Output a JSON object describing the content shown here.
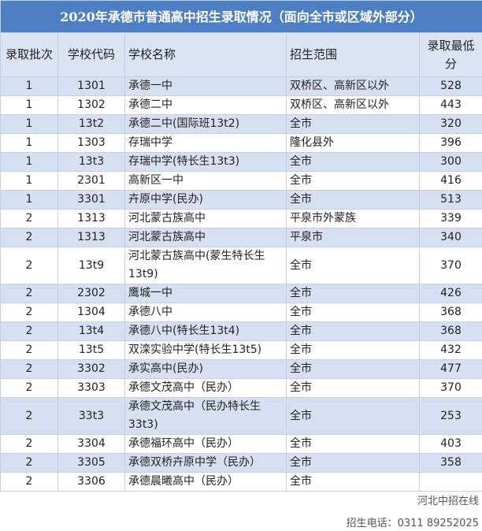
{
  "table": {
    "title": "2020年承德市普通高中招生录取情况（面向全市或区域外部分）",
    "columns": [
      "录取批次",
      "学校代码",
      "学校名称",
      "招生范围",
      "录取最低分"
    ],
    "rows": [
      [
        1,
        "1301",
        "承德一中",
        "双桥区、高新区以外",
        528
      ],
      [
        1,
        "1302",
        "承德二中",
        "双桥区、高新区以外",
        443
      ],
      [
        1,
        "13t2",
        "承德二中(国际班13t2)",
        "全市",
        320
      ],
      [
        1,
        "1303",
        "存瑞中学",
        "隆化县外",
        396
      ],
      [
        1,
        "13t3",
        "存瑞中学(特长生13t3)",
        "全市",
        300
      ],
      [
        1,
        "2301",
        "高新区一中",
        "全市",
        416
      ],
      [
        1,
        "3301",
        "卉原中学(民办)",
        "全市",
        513
      ],
      [
        2,
        "1313",
        "河北蒙古族高中",
        "平泉市外蒙族",
        339
      ],
      [
        2,
        "1313",
        "河北蒙古族高中",
        "平泉市",
        340
      ],
      [
        2,
        "13t9",
        "河北蒙古族高中(蒙生特长生13t9)",
        "全市",
        370
      ],
      [
        2,
        "2302",
        "鹰城一中",
        "全市",
        426
      ],
      [
        2,
        "1304",
        "承德八中",
        "全市",
        368
      ],
      [
        2,
        "13t4",
        "承德八中(特长生13t4)",
        "全市",
        368
      ],
      [
        2,
        "13t5",
        "双滦实验中学(特长生13t5)",
        "全市",
        432
      ],
      [
        2,
        "3302",
        "承实高中(民办)",
        "全市",
        477
      ],
      [
        2,
        "3303",
        "承德文茂高中（民办）",
        "全市",
        370
      ],
      [
        2,
        "33t3",
        "承德文茂高中（民办特长生33t3)",
        "全市",
        253
      ],
      [
        2,
        "3304",
        "承德福环高中（民办）",
        "全市",
        403
      ],
      [
        2,
        "3305",
        "承德双桥卉原中学（民办）",
        "全市",
        358
      ],
      [
        2,
        "3306",
        "承德晨曦高中（民办）",
        "全市",
        null
      ]
    ]
  },
  "watermark": {
    "account": "河北中招在线",
    "phone": "招生电话：0311 89252025"
  }
}
